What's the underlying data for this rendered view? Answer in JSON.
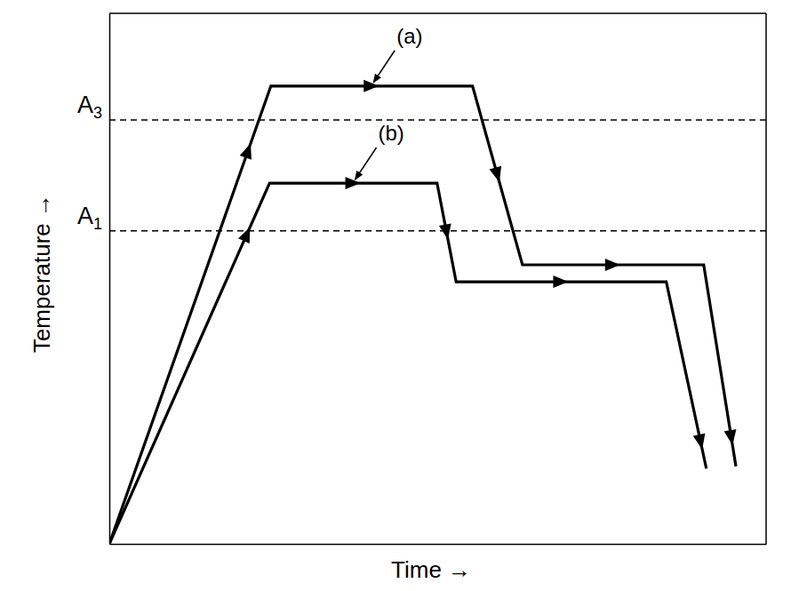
{
  "chart_data": {
    "type": "line",
    "x_label": "Time →",
    "y_label": "Temperature →",
    "xlim": [
      0,
      100
    ],
    "ylim": [
      0,
      100
    ],
    "xticks": [],
    "yticks": [],
    "tick_labels": false,
    "series": [
      {
        "name": "(a)",
        "color": "#000000",
        "x": [
          0,
          24.6,
          55.3,
          62.9,
          90.5,
          95.4
        ],
        "values": [
          0,
          86.3,
          86.3,
          52.6,
          52.6,
          14.6
        ]
      },
      {
        "name": "(b)",
        "color": "#000000",
        "x": [
          0,
          24.4,
          49.9,
          52.8,
          84.8,
          90.9
        ],
        "values": [
          0,
          68.0,
          68.0,
          49.4,
          49.4,
          14.2
        ]
      }
    ],
    "reference_lines": [
      {
        "label": "A3",
        "value": 79.9,
        "line_style": "dashed"
      },
      {
        "label": "A1",
        "value": 59.0,
        "line_style": "dashed"
      }
    ]
  }
}
